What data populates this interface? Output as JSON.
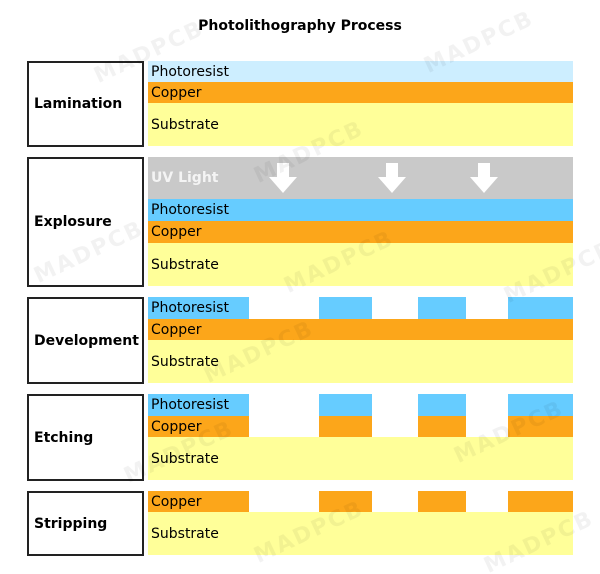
{
  "title": "Photolithography Process",
  "watermark": "MADPCB",
  "colors": {
    "photoresist_unexposed": "#cdeeff",
    "photoresist": "#66ccff",
    "copper": "#fca61a",
    "substrate": "#ffff99",
    "uv_light": "#c9c9c9"
  },
  "steps": [
    {
      "name": "Lamination",
      "layers": [
        "Photoresist",
        "Copper",
        "Substrate"
      ]
    },
    {
      "name": "Explosure",
      "layers": [
        "UV Light",
        "Photoresist",
        "Copper",
        "Substrate"
      ]
    },
    {
      "name": "Development",
      "layers": [
        "Photoresist",
        "Copper",
        "Substrate"
      ]
    },
    {
      "name": "Etching",
      "layers": [
        "Photoresist",
        "Copper",
        "Substrate"
      ]
    },
    {
      "name": "Stripping",
      "layers": [
        "Copper",
        "Substrate"
      ]
    }
  ]
}
